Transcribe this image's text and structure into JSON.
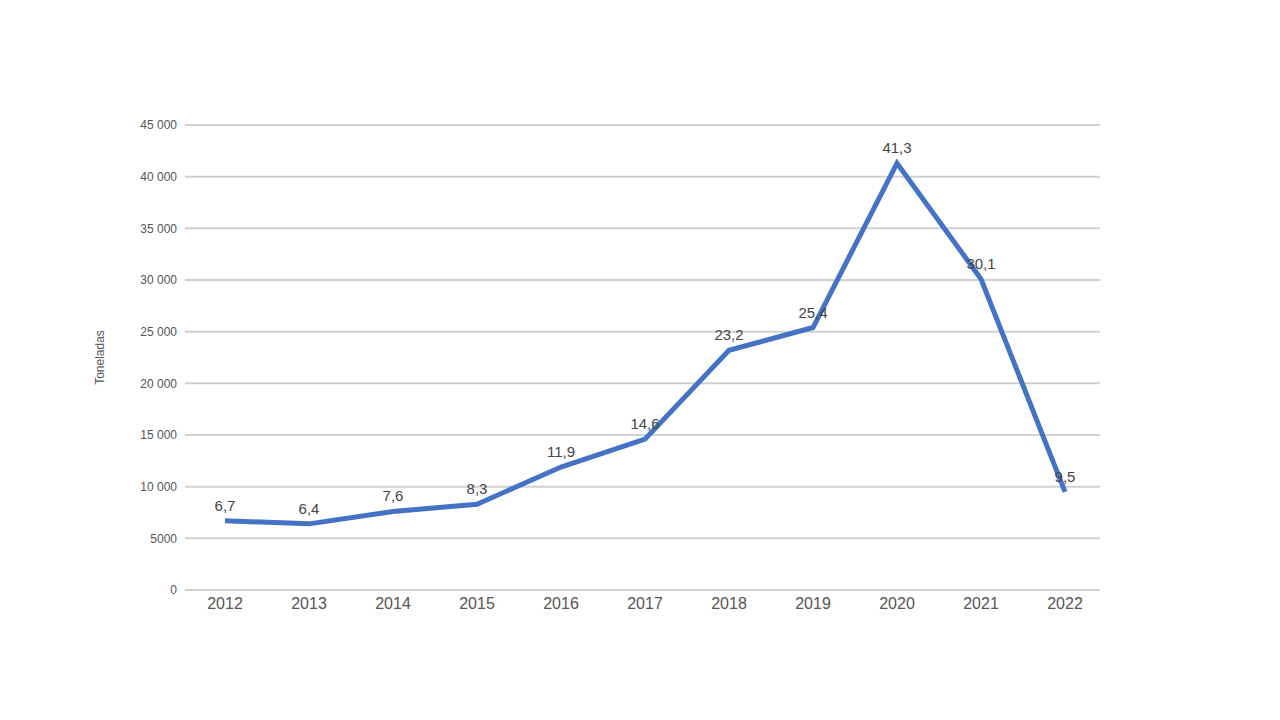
{
  "chart_data": {
    "type": "line",
    "y_label": "Toneladas",
    "categories": [
      "2012",
      "2013",
      "2014",
      "2015",
      "2016",
      "2017",
      "2018",
      "2019",
      "2020",
      "2021",
      "2022"
    ],
    "values": [
      6700,
      6400,
      7600,
      8300,
      11900,
      14600,
      23200,
      25400,
      41300,
      30100,
      9500
    ],
    "value_labels": [
      "6,7",
      "6,4",
      "7,6",
      "8,3",
      "11,9",
      "14,6",
      "23,2",
      "25,4",
      "41,3",
      "30,1",
      "9,5"
    ],
    "data_labels": true,
    "color": "#4472c4",
    "ylim": [
      0,
      45000
    ],
    "yticks": [
      0,
      5000,
      {
        "value": 10000,
        "label": "10 000"
      },
      {
        "value": 15000,
        "label": "15 000"
      },
      {
        "value": 20000,
        "label": "20 000"
      },
      {
        "value": 25000,
        "label": "25 000"
      },
      {
        "value": 30000,
        "label": "30 000"
      },
      {
        "value": 35000,
        "label": "35 000"
      },
      {
        "value": 40000,
        "label": "40 000"
      },
      {
        "value": 45000,
        "label": "45 000"
      }
    ],
    "grid": true
  }
}
